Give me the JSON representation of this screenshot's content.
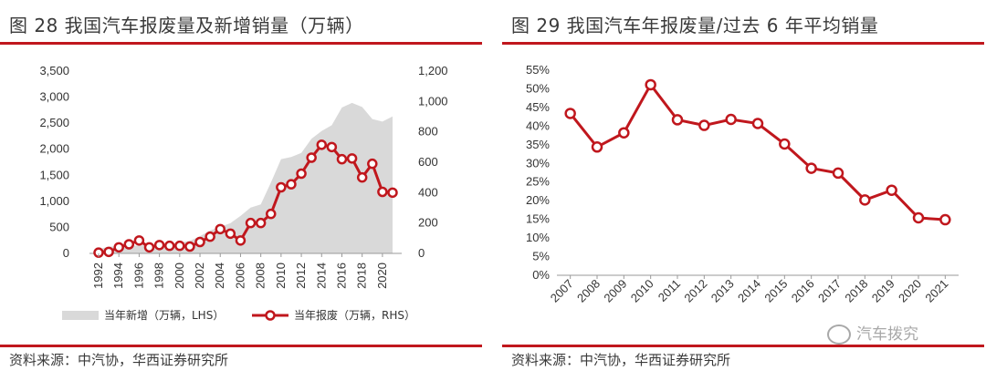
{
  "left": {
    "title": "图 28 我国汽车报废量及新增销量（万辆）",
    "source": "资料来源：中汽协，华西证券研究所"
  },
  "right": {
    "title": "图 29 我国汽车年报废量/过去 6 年平均销量",
    "source": "资料来源：中汽协，华西证券研究所"
  },
  "watermark": "汽车拨究",
  "colors": {
    "red": "#c0171d",
    "area": "#d9d9d9",
    "grid": "#e6e6e6"
  },
  "chart_data": [
    {
      "type": "area+line",
      "x": [
        1992,
        1993,
        1994,
        1995,
        1996,
        1997,
        1998,
        1999,
        2000,
        2001,
        2002,
        2003,
        2004,
        2005,
        2006,
        2007,
        2008,
        2009,
        2010,
        2011,
        2012,
        2013,
        2014,
        2015,
        2016,
        2017,
        2018,
        2019,
        2020,
        2021
      ],
      "x_ticks": [
        "1992",
        "1994",
        "1996",
        "1998",
        "2000",
        "2002",
        "2004",
        "2006",
        "2008",
        "2010",
        "2012",
        "2014",
        "2016",
        "2018",
        "2020"
      ],
      "y_left_ticks": [
        "0",
        "500",
        "1,000",
        "1,500",
        "2,000",
        "2,500",
        "3,000",
        "3,500"
      ],
      "y_right_ticks": [
        "0",
        "200",
        "400",
        "600",
        "800",
        "1,000",
        "1,200"
      ],
      "ylim_left": [
        0,
        3500
      ],
      "ylim_right": [
        0,
        1200
      ],
      "series": [
        {
          "name": "当年新增（万辆，LHS）",
          "axis": "left",
          "values": [
            80,
            130,
            140,
            150,
            150,
            160,
            160,
            180,
            210,
            240,
            330,
            440,
            510,
            580,
            720,
            880,
            940,
            1360,
            1810,
            1850,
            1930,
            2200,
            2350,
            2460,
            2800,
            2890,
            2810,
            2580,
            2530,
            2630
          ]
        },
        {
          "name": "当年报废（万辆，RHS）",
          "axis": "right",
          "values": [
            5,
            10,
            40,
            60,
            85,
            40,
            55,
            50,
            50,
            45,
            75,
            110,
            160,
            130,
            85,
            200,
            200,
            260,
            435,
            455,
            525,
            630,
            715,
            700,
            620,
            625,
            500,
            590,
            405,
            400
          ]
        }
      ]
    },
    {
      "type": "line",
      "x": [
        "2007",
        "2008",
        "2009",
        "2010",
        "2011",
        "2012",
        "2013",
        "2014",
        "2015",
        "2016",
        "2017",
        "2018",
        "2019",
        "2020",
        "2021"
      ],
      "y_ticks": [
        "0%",
        "5%",
        "10%",
        "15%",
        "20%",
        "25%",
        "30%",
        "35%",
        "40%",
        "45%",
        "50%",
        "55%"
      ],
      "ylim": [
        0,
        55
      ],
      "series": [
        {
          "values": [
            43.4,
            34.4,
            38.2,
            51.1,
            41.7,
            40.2,
            41.8,
            40.7,
            35.2,
            28.7,
            27.4,
            20.2,
            22.8,
            15.4,
            14.9
          ]
        }
      ]
    }
  ]
}
